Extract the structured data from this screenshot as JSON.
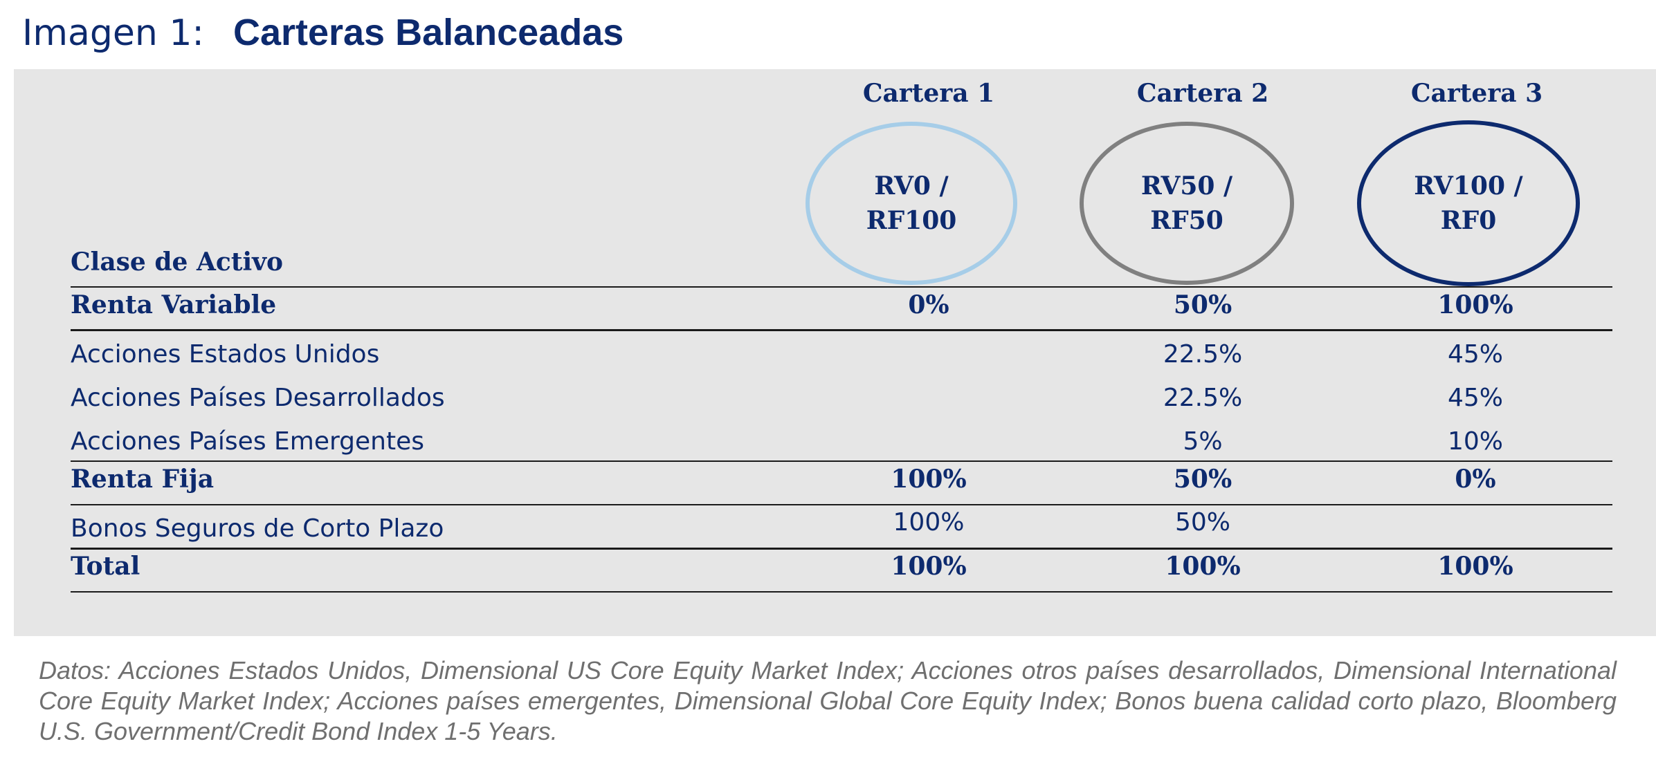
{
  "title": {
    "prefix": "Imagen 1:",
    "main": "Carteras Balanceadas"
  },
  "portfolios": [
    {
      "header": "Cartera 1",
      "line1": "RV0 /",
      "line2": "RF100",
      "ring_color": "#a6cde8"
    },
    {
      "header": "Cartera 2",
      "line1": "RV50 /",
      "line2": "RF50",
      "ring_color": "#808080"
    },
    {
      "header": "Cartera 3",
      "line1": "RV100 /",
      "line2": "RF0",
      "ring_color": "#0d2a6e"
    }
  ],
  "table": {
    "column_header": "Clase de Activo",
    "rows": [
      {
        "label": "Renta Variable",
        "bold": true,
        "values": [
          "0%",
          "50%",
          "100%"
        ]
      },
      {
        "label": "Acciones Estados Unidos",
        "bold": false,
        "values": [
          "",
          "22.5%",
          "45%"
        ]
      },
      {
        "label": "Acciones Países Desarrollados",
        "bold": false,
        "values": [
          "",
          "22.5%",
          "45%"
        ]
      },
      {
        "label": "Acciones Países Emergentes",
        "bold": false,
        "values": [
          "",
          "5%",
          "10%"
        ]
      },
      {
        "label": "Renta Fija",
        "bold": true,
        "values": [
          "100%",
          "50%",
          "0%"
        ]
      },
      {
        "label": "Bonos Seguros de Corto Plazo",
        "bold": false,
        "values": [
          "100%",
          "50%",
          ""
        ]
      },
      {
        "label": "Total",
        "bold": true,
        "values": [
          "100%",
          "100%",
          "100%"
        ]
      }
    ]
  },
  "note": "Datos: Acciones Estados Unidos, Dimensional US Core Equity Market Index; Acciones otros países desarrollados, Dimensional International Core Equity Market Index; Acciones países emergentes, Dimensional Global Core Equity Index; Bonos buena calidad corto plazo, Bloomberg U.S. Government/Credit Bond Index 1-5 Years.",
  "colors": {
    "text": "#0d2a6e",
    "panel_background": "#e6e6e6",
    "note_text": "#6f6f6f"
  }
}
